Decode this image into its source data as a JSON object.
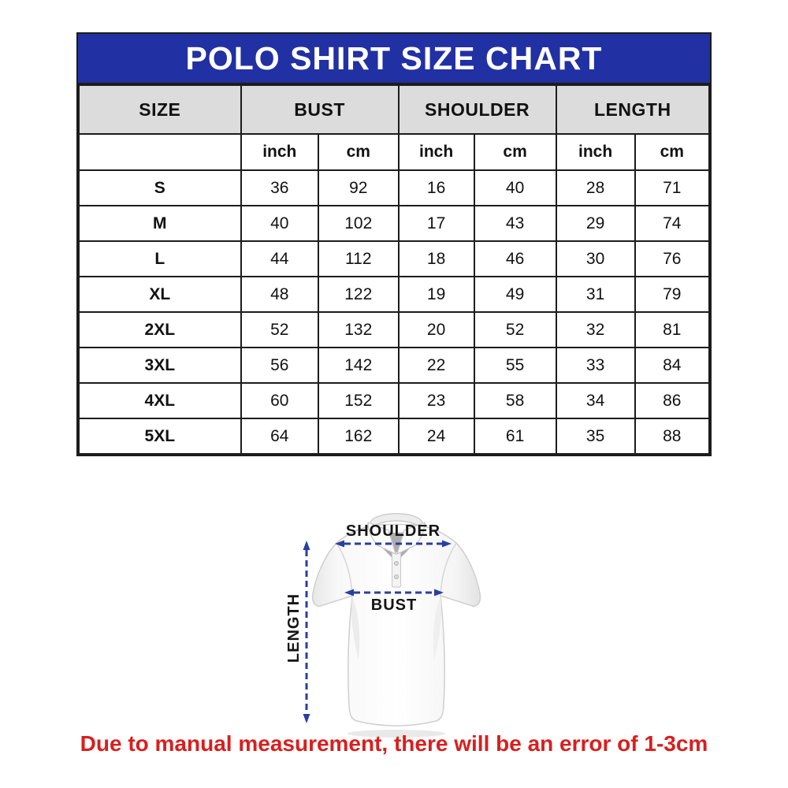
{
  "title": "POLO SHIRT SIZE CHART",
  "chart_data": {
    "type": "table",
    "title": "POLO SHIRT SIZE CHART",
    "column_groups": [
      "SIZE",
      "BUST",
      "SHOULDER",
      "LENGTH"
    ],
    "unit_headers": [
      "inch",
      "cm",
      "inch",
      "cm",
      "inch",
      "cm"
    ],
    "rows": [
      {
        "size": "S",
        "values": [
          "36",
          "92",
          "16",
          "40",
          "28",
          "71"
        ]
      },
      {
        "size": "M",
        "values": [
          "40",
          "102",
          "17",
          "43",
          "29",
          "74"
        ]
      },
      {
        "size": "L",
        "values": [
          "44",
          "112",
          "18",
          "46",
          "30",
          "76"
        ]
      },
      {
        "size": "XL",
        "values": [
          "48",
          "122",
          "19",
          "49",
          "31",
          "79"
        ]
      },
      {
        "size": "2XL",
        "values": [
          "52",
          "132",
          "20",
          "52",
          "32",
          "81"
        ]
      },
      {
        "size": "3XL",
        "values": [
          "56",
          "142",
          "22",
          "55",
          "33",
          "84"
        ]
      },
      {
        "size": "4XL",
        "values": [
          "60",
          "152",
          "23",
          "58",
          "34",
          "86"
        ]
      },
      {
        "size": "5XL",
        "values": [
          "64",
          "162",
          "24",
          "61",
          "35",
          "88"
        ]
      }
    ]
  },
  "diagram": {
    "shirt_icon": "polo-shirt-illustration",
    "shoulder_label": "SHOULDER",
    "bust_label": "BUST",
    "length_label": "LENGTH"
  },
  "note": "Due to manual measurement, there will be an error of 1-3cm",
  "colors": {
    "title_bg": "#2130A2",
    "header_bg": "#DCDCDC",
    "table_border": "#1C1C1C",
    "note_text": "#D81F1E",
    "arrow": "#2A3F9D"
  }
}
